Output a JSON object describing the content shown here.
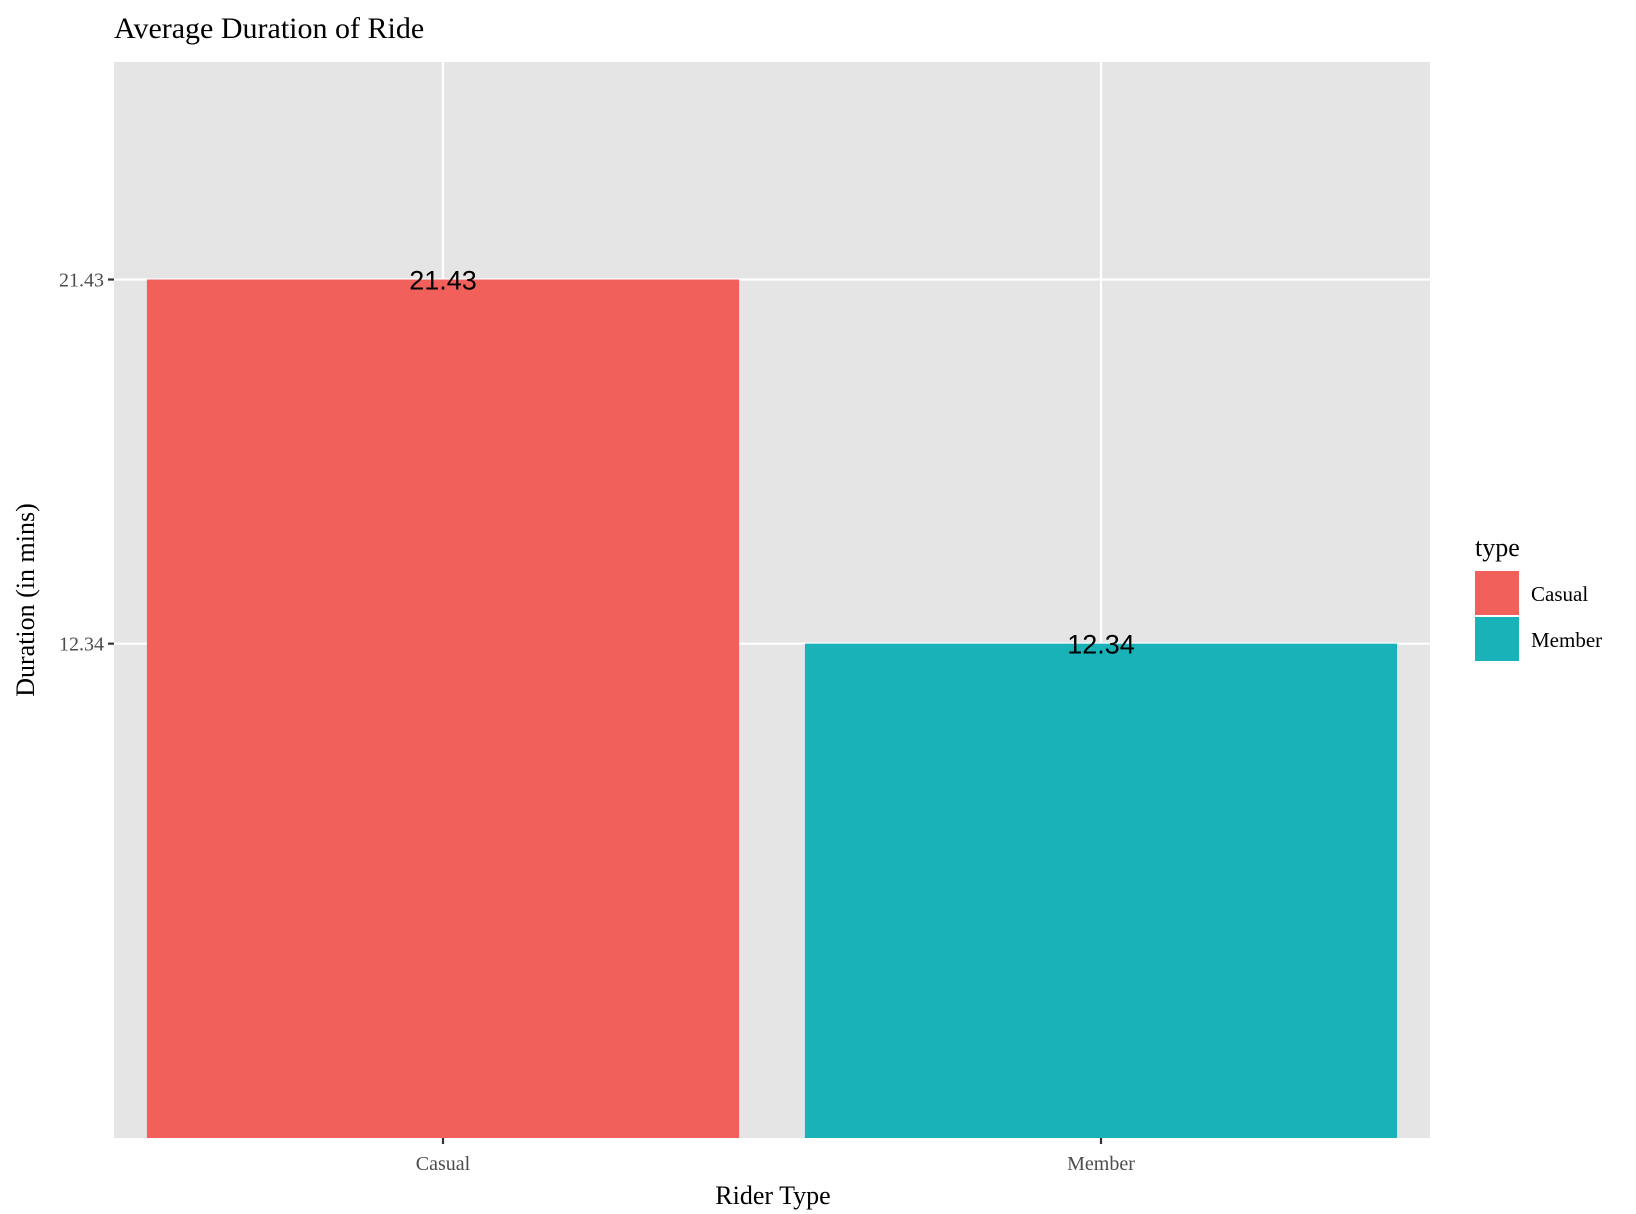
{
  "chart_data": {
    "type": "bar",
    "title": "Average Duration of Ride",
    "xlabel": "Rider Type",
    "ylabel": "Duration (in mins)",
    "categories": [
      "Casual",
      "Member"
    ],
    "values": [
      21.43,
      12.34
    ],
    "data_labels": [
      "21.43",
      "12.34"
    ],
    "y_ticks": [
      12.34,
      21.43
    ],
    "y_tick_labels": [
      "12.34",
      "21.43"
    ],
    "ylim": [
      0,
      26.86
    ],
    "grid": true,
    "legend": {
      "title": "type",
      "position": "right",
      "entries": [
        {
          "label": "Casual",
          "color": "#F2605B"
        },
        {
          "label": "Member",
          "color": "#19B2B8"
        }
      ]
    },
    "colors": {
      "panel_background": "#E5E5E5",
      "grid": "#FFFFFF",
      "Casual": "#F2605B",
      "Member": "#19B2B8"
    }
  }
}
